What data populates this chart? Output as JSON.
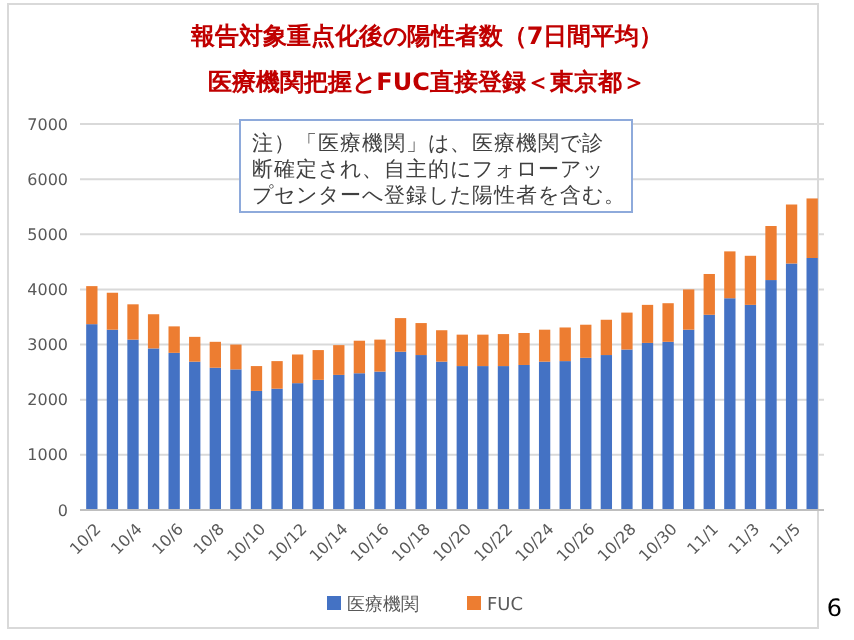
{
  "chart_data": {
    "type": "bar",
    "stacked": true,
    "title": "報告対象重点化後の陽性者数（7日間平均）",
    "subtitle": "医療機関把握とFUC直接登録＜東京都＞",
    "categories": [
      "10/2",
      null,
      "10/4",
      null,
      "10/6",
      null,
      "10/8",
      null,
      "10/10",
      null,
      "10/12",
      null,
      "10/14",
      null,
      "10/16",
      null,
      "10/18",
      null,
      "10/20",
      null,
      "10/22",
      null,
      "10/24",
      null,
      "10/26",
      null,
      "10/28",
      null,
      "10/30",
      null,
      "11/1",
      null,
      "11/3",
      null,
      "11/5",
      null
    ],
    "series": [
      {
        "name": "医療機関",
        "color": "#4472c4",
        "values": [
          3370,
          3270,
          3090,
          2930,
          2850,
          2690,
          2580,
          2550,
          2160,
          2200,
          2300,
          2360,
          2450,
          2480,
          2510,
          2870,
          2810,
          2690,
          2610,
          2610,
          2610,
          2630,
          2690,
          2700,
          2760,
          2810,
          2910,
          3030,
          3050,
          3270,
          3540,
          3840,
          3720,
          4170,
          4470,
          4570
        ]
      },
      {
        "name": "FUC",
        "color": "#ed7d31",
        "values": [
          690,
          670,
          640,
          620,
          480,
          450,
          470,
          450,
          450,
          500,
          520,
          540,
          540,
          590,
          580,
          610,
          580,
          570,
          570,
          570,
          580,
          580,
          580,
          610,
          600,
          640,
          670,
          690,
          700,
          730,
          740,
          850,
          890,
          980,
          1070,
          1080
        ]
      }
    ],
    "ylim": [
      0,
      7000
    ],
    "yticks": [
      0,
      1000,
      2000,
      3000,
      4000,
      5000,
      6000,
      7000
    ],
    "grid": "y",
    "legend": "bottom",
    "annotations": [
      "注）「医療機関」は、医療機関で診断確定され、自主的にフォローアップセンターへ登録した陽性者を含む。",
      "6"
    ]
  }
}
